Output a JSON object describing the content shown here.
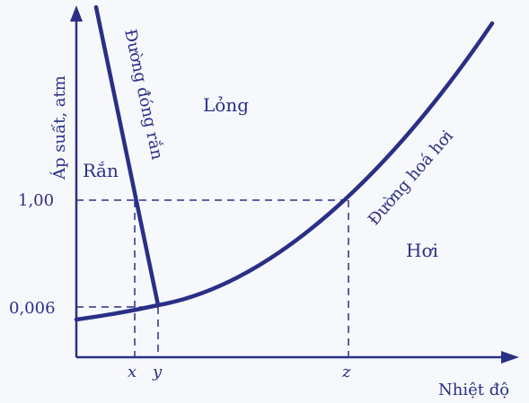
{
  "axes": {
    "y_label": "Áp suất, atm",
    "x_label": "Nhiệt độ",
    "y_ticks": [
      "1,00",
      "0,006"
    ],
    "x_ticks": [
      "x",
      "y",
      "z"
    ]
  },
  "regions": {
    "solid": "Rắn",
    "liquid": "Lỏng",
    "vapor": "Hơi"
  },
  "curves": {
    "melting": "Đường đóng rắn",
    "vaporization": "Đường hoá hơi"
  },
  "colors": {
    "curve": "#2a2f86",
    "axis": "#2a2f86",
    "dashed": "#2a2f86",
    "background": "#f7f8fb"
  }
}
